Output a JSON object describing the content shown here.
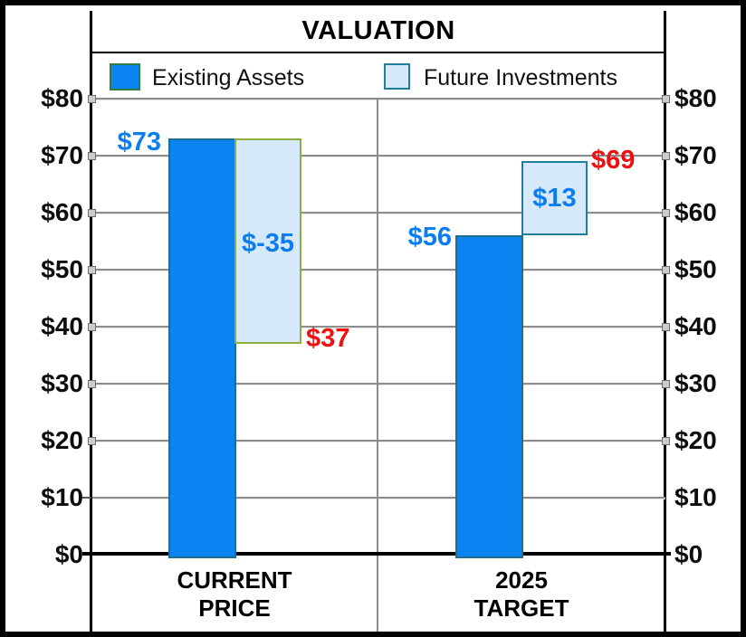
{
  "title": "VALUATION",
  "legend": {
    "items": [
      {
        "label": "Existing Assets",
        "color": "#0b83f1"
      },
      {
        "label": "Future Investments",
        "color": "#d6e9fa"
      }
    ]
  },
  "axis": {
    "y_ticks_top_down": [
      "$80",
      "$70",
      "$60",
      "$50",
      "$40",
      "$30",
      "$20",
      "$10",
      "$0"
    ]
  },
  "categories": [
    {
      "line1": "CURRENT",
      "line2": "PRICE"
    },
    {
      "line1": "2025",
      "line2": "TARGET"
    }
  ],
  "value_labels": {
    "current_existing": "$73",
    "current_delta": "$-35",
    "current_result": "$37",
    "target_existing": "$56",
    "target_delta": "$13",
    "target_result": "$69"
  },
  "colors": {
    "existing_fill": "#0b83f1",
    "future_fill": "#d6e9fa",
    "value_label_blue": "#0b7df0",
    "result_label_red": "#ed1111"
  },
  "chart_data": {
    "type": "bar",
    "subtype": "floating-bar-waterfall",
    "title": "VALUATION",
    "categories": [
      "CURRENT PRICE",
      "2025 TARGET"
    ],
    "series": [
      {
        "name": "Existing Assets",
        "values": [
          73,
          56
        ]
      },
      {
        "name": "Future Investments",
        "deltas": [
          -35,
          13
        ],
        "resulting_totals": [
          37,
          69
        ]
      }
    ],
    "bars": [
      {
        "category": "CURRENT PRICE",
        "series": "Existing Assets",
        "from": 0,
        "to": 73,
        "label": "$73"
      },
      {
        "category": "CURRENT PRICE",
        "series": "Future Investments",
        "from": 37,
        "to": 73,
        "label": "$-35",
        "end_label": "$37"
      },
      {
        "category": "2025 TARGET",
        "series": "Existing Assets",
        "from": 0,
        "to": 56,
        "label": "$56"
      },
      {
        "category": "2025 TARGET",
        "series": "Future Investments",
        "from": 56,
        "to": 69,
        "label": "$13",
        "end_label": "$69"
      }
    ],
    "ylim": [
      0,
      80
    ],
    "y_tick_interval": 10,
    "y_tick_format": "$",
    "grid": true,
    "legend_position": "top",
    "y_axis_sides": "both"
  }
}
